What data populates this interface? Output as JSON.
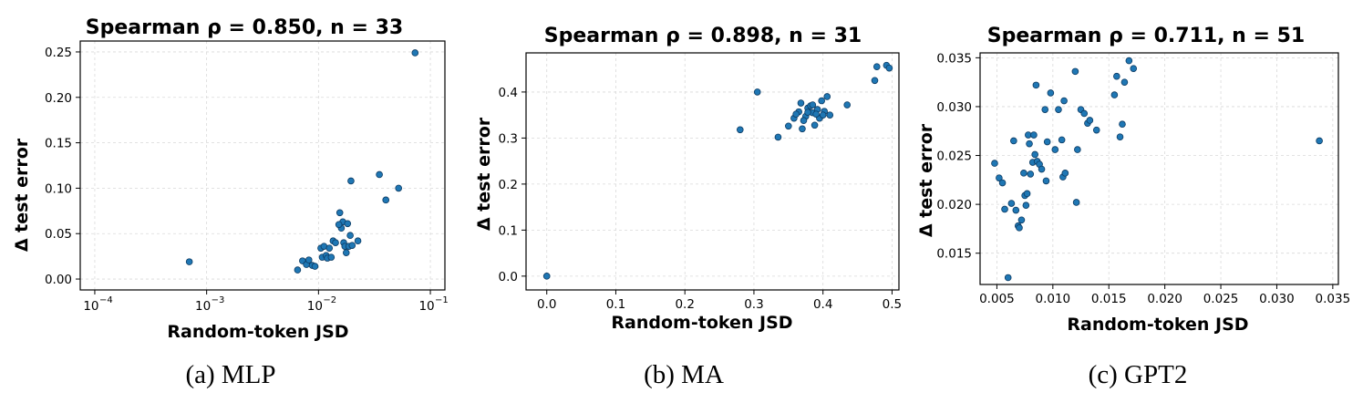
{
  "chart_data": [
    {
      "type": "scatter",
      "title": "Spearman ρ = 0.850, n = 33",
      "xlabel": "Random-token JSD",
      "ylabel": "Δ test error",
      "caption": "(a) MLP",
      "xscale": "log",
      "xlim": [
        0.0001,
        0.1
      ],
      "ylim": [
        0,
        0.25
      ],
      "xticks": [
        {
          "v": 0.0001,
          "base": "10",
          "exp": "−4"
        },
        {
          "v": 0.001,
          "base": "10",
          "exp": "−3"
        },
        {
          "v": 0.01,
          "base": "10",
          "exp": "−2"
        },
        {
          "v": 0.1,
          "base": "10",
          "exp": "−1"
        }
      ],
      "yticks": [
        {
          "v": 0,
          "label": "0.00"
        },
        {
          "v": 0.05,
          "label": "0.05"
        },
        {
          "v": 0.1,
          "label": "0.10"
        },
        {
          "v": 0.15,
          "label": "0.15"
        },
        {
          "v": 0.2,
          "label": "0.20"
        },
        {
          "v": 0.25,
          "label": "0.25"
        }
      ],
      "grid": true,
      "color": "#1f77b4",
      "points": [
        [
          0.0007,
          0.019
        ],
        [
          0.0065,
          0.01
        ],
        [
          0.0072,
          0.02
        ],
        [
          0.0078,
          0.016
        ],
        [
          0.0082,
          0.021
        ],
        [
          0.0088,
          0.015
        ],
        [
          0.0093,
          0.014
        ],
        [
          0.0105,
          0.034
        ],
        [
          0.0108,
          0.024
        ],
        [
          0.0112,
          0.036
        ],
        [
          0.0117,
          0.026
        ],
        [
          0.012,
          0.023
        ],
        [
          0.0125,
          0.034
        ],
        [
          0.013,
          0.024
        ],
        [
          0.0135,
          0.042
        ],
        [
          0.0142,
          0.04
        ],
        [
          0.0155,
          0.073
        ],
        [
          0.016,
          0.056
        ],
        [
          0.0165,
          0.063
        ],
        [
          0.0168,
          0.04
        ],
        [
          0.0172,
          0.036
        ],
        [
          0.0177,
          0.029
        ],
        [
          0.0182,
          0.061
        ],
        [
          0.0187,
          0.036
        ],
        [
          0.0195,
          0.108
        ],
        [
          0.0192,
          0.048
        ],
        [
          0.02,
          0.037
        ],
        [
          0.0225,
          0.042
        ],
        [
          0.035,
          0.115
        ],
        [
          0.04,
          0.087
        ],
        [
          0.052,
          0.1
        ],
        [
          0.073,
          0.249
        ],
        [
          0.0152,
          0.06
        ]
      ]
    },
    {
      "type": "scatter",
      "title": "Spearman ρ = 0.898, n = 31",
      "xlabel": "Random-token JSD",
      "ylabel": "Δ test error",
      "caption": "(b) MA",
      "xscale": "linear",
      "xlim": [
        -0.03,
        0.51
      ],
      "ylim": [
        -0.03,
        0.485
      ],
      "xticks": [
        {
          "v": 0,
          "label": "0.0"
        },
        {
          "v": 0.1,
          "label": "0.1"
        },
        {
          "v": 0.2,
          "label": "0.2"
        },
        {
          "v": 0.3,
          "label": "0.3"
        },
        {
          "v": 0.4,
          "label": "0.4"
        },
        {
          "v": 0.5,
          "label": "0.5"
        }
      ],
      "yticks": [
        {
          "v": 0,
          "label": "0.0"
        },
        {
          "v": 0.1,
          "label": "0.1"
        },
        {
          "v": 0.2,
          "label": "0.2"
        },
        {
          "v": 0.3,
          "label": "0.3"
        },
        {
          "v": 0.4,
          "label": "0.4"
        }
      ],
      "grid": true,
      "color": "#1f77b4",
      "points": [
        [
          0.0,
          0.0
        ],
        [
          0.28,
          0.318
        ],
        [
          0.305,
          0.4
        ],
        [
          0.335,
          0.302
        ],
        [
          0.35,
          0.326
        ],
        [
          0.358,
          0.343
        ],
        [
          0.365,
          0.357
        ],
        [
          0.368,
          0.376
        ],
        [
          0.37,
          0.32
        ],
        [
          0.375,
          0.347
        ],
        [
          0.378,
          0.365
        ],
        [
          0.382,
          0.37
        ],
        [
          0.385,
          0.355
        ],
        [
          0.388,
          0.328
        ],
        [
          0.392,
          0.362
        ],
        [
          0.395,
          0.343
        ],
        [
          0.398,
          0.381
        ],
        [
          0.402,
          0.358
        ],
        [
          0.406,
          0.39
        ],
        [
          0.41,
          0.35
        ],
        [
          0.435,
          0.372
        ],
        [
          0.475,
          0.425
        ],
        [
          0.478,
          0.455
        ],
        [
          0.492,
          0.458
        ],
        [
          0.496,
          0.452
        ],
        [
          0.372,
          0.338
        ],
        [
          0.385,
          0.372
        ],
        [
          0.361,
          0.352
        ],
        [
          0.39,
          0.352
        ],
        [
          0.378,
          0.356
        ],
        [
          0.4,
          0.35
        ]
      ]
    },
    {
      "type": "scatter",
      "title": "Spearman ρ = 0.711, n = 51",
      "xlabel": "Random-token JSD",
      "ylabel": "Δ test error",
      "caption": "(c) GPT2",
      "xscale": "linear",
      "xlim": [
        0.0035,
        0.0355
      ],
      "ylim": [
        0.0118,
        0.0355
      ],
      "xticks": [
        {
          "v": 0.005,
          "label": "0.005"
        },
        {
          "v": 0.01,
          "label": "0.010"
        },
        {
          "v": 0.015,
          "label": "0.015"
        },
        {
          "v": 0.02,
          "label": "0.020"
        },
        {
          "v": 0.025,
          "label": "0.025"
        },
        {
          "v": 0.03,
          "label": "0.030"
        },
        {
          "v": 0.035,
          "label": "0.035"
        }
      ],
      "yticks": [
        {
          "v": 0.015,
          "label": "0.015"
        },
        {
          "v": 0.02,
          "label": "0.020"
        },
        {
          "v": 0.025,
          "label": "0.025"
        },
        {
          "v": 0.03,
          "label": "0.030"
        },
        {
          "v": 0.035,
          "label": "0.035"
        }
      ],
      "grid": true,
      "color": "#1f77b4",
      "points": [
        [
          0.0048,
          0.0242
        ],
        [
          0.0052,
          0.0227
        ],
        [
          0.0055,
          0.0222
        ],
        [
          0.0057,
          0.0195
        ],
        [
          0.006,
          0.0125
        ],
        [
          0.0063,
          0.0201
        ],
        [
          0.0065,
          0.0265
        ],
        [
          0.0067,
          0.0194
        ],
        [
          0.0069,
          0.0178
        ],
        [
          0.007,
          0.0176
        ],
        [
          0.0072,
          0.0184
        ],
        [
          0.0074,
          0.0232
        ],
        [
          0.0075,
          0.0209
        ],
        [
          0.0076,
          0.0199
        ],
        [
          0.0077,
          0.0211
        ],
        [
          0.0078,
          0.0271
        ],
        [
          0.0079,
          0.0262
        ],
        [
          0.008,
          0.0231
        ],
        [
          0.0082,
          0.0243
        ],
        [
          0.0083,
          0.0271
        ],
        [
          0.0084,
          0.0251
        ],
        [
          0.0085,
          0.0322
        ],
        [
          0.0086,
          0.0244
        ],
        [
          0.0088,
          0.0241
        ],
        [
          0.009,
          0.0236
        ],
        [
          0.0093,
          0.0297
        ],
        [
          0.0094,
          0.0224
        ],
        [
          0.0095,
          0.0264
        ],
        [
          0.0098,
          0.0314
        ],
        [
          0.0102,
          0.0256
        ],
        [
          0.0105,
          0.0297
        ],
        [
          0.0108,
          0.0266
        ],
        [
          0.0109,
          0.0228
        ],
        [
          0.011,
          0.0306
        ],
        [
          0.0111,
          0.0232
        ],
        [
          0.012,
          0.0336
        ],
        [
          0.0121,
          0.0202
        ],
        [
          0.0122,
          0.0256
        ],
        [
          0.0125,
          0.0297
        ],
        [
          0.0128,
          0.0293
        ],
        [
          0.0131,
          0.0283
        ],
        [
          0.0133,
          0.0286
        ],
        [
          0.0139,
          0.0276
        ],
        [
          0.0155,
          0.0312
        ],
        [
          0.0157,
          0.0331
        ],
        [
          0.016,
          0.0269
        ],
        [
          0.0162,
          0.0282
        ],
        [
          0.0164,
          0.0325
        ],
        [
          0.0168,
          0.0347
        ],
        [
          0.0172,
          0.0339
        ],
        [
          0.0338,
          0.0265
        ]
      ]
    }
  ]
}
